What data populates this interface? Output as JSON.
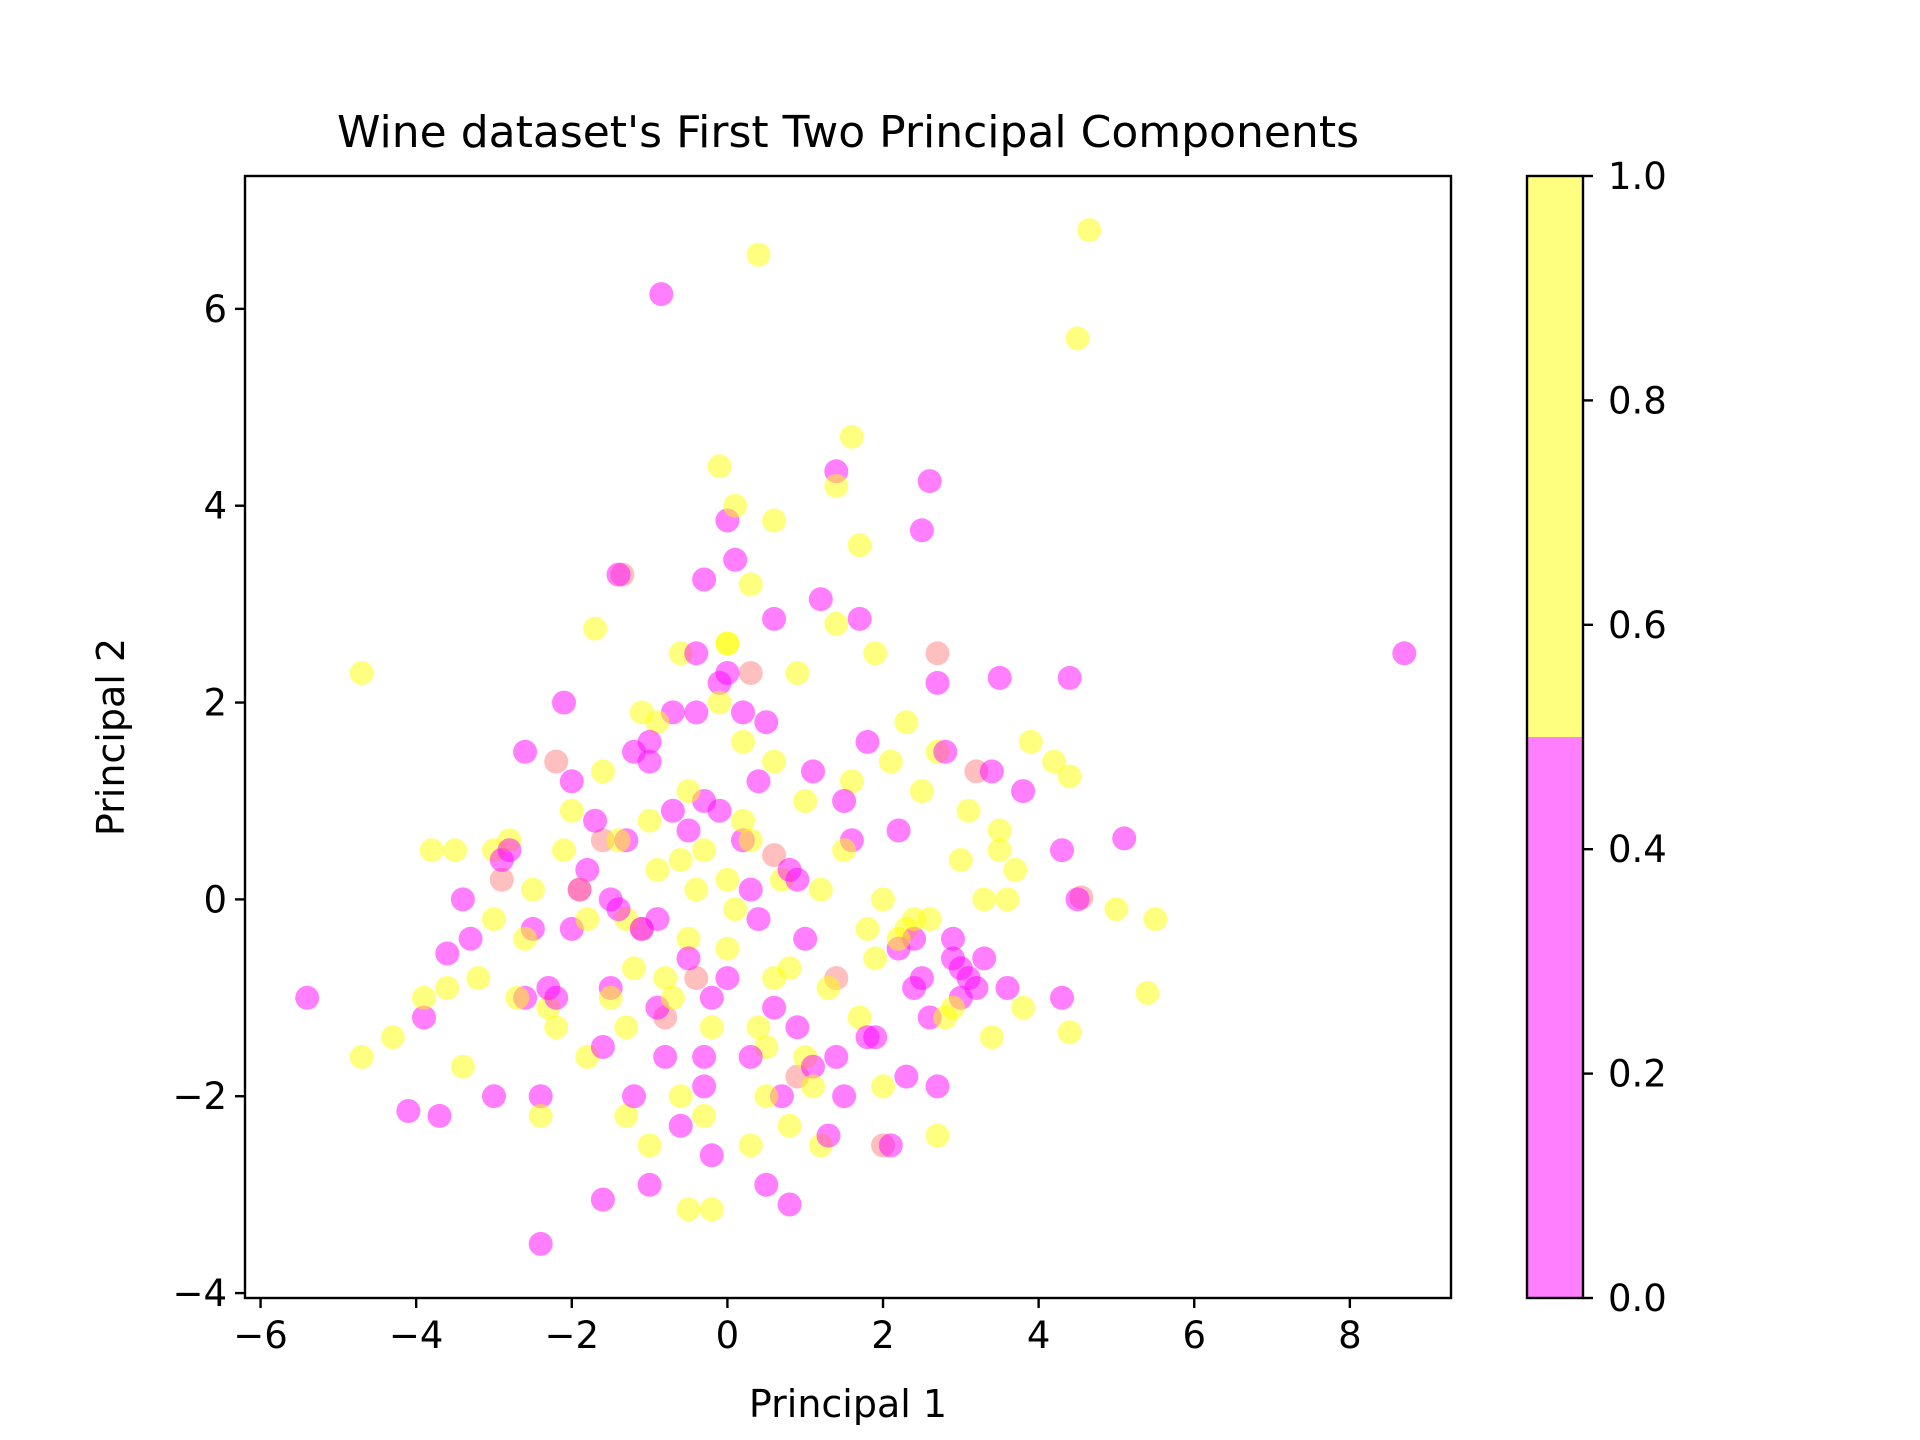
{
  "chart_data": {
    "type": "scatter",
    "title": "Wine dataset's First Two Principal Components",
    "xlabel": "Principal 1",
    "ylabel": "Principal 2",
    "xlim": [
      -6.2,
      9.3
    ],
    "ylim": [
      -4.05,
      7.35
    ],
    "xticks": [
      -6,
      -4,
      -2,
      0,
      2,
      4,
      6,
      8
    ],
    "xtick_labels": [
      "−6",
      "−4",
      "−2",
      "0",
      "2",
      "4",
      "6",
      "8"
    ],
    "yticks": [
      -4,
      -2,
      0,
      2,
      4,
      6
    ],
    "ytick_labels": [
      "−4",
      "−2",
      "0",
      "2",
      "4",
      "6"
    ],
    "grid": false,
    "colorbar": {
      "range": [
        0.0,
        1.0
      ],
      "ticks": [
        0.0,
        0.2,
        0.4,
        0.6,
        0.8,
        1.0
      ],
      "tick_labels": [
        "0.0",
        "0.2",
        "0.4",
        "0.6",
        "0.8",
        "1.0"
      ],
      "colors": {
        "low": "#ff00ff",
        "high": "#ffff00"
      },
      "split": 0.5
    },
    "marker_alpha": 0.5,
    "series": [
      {
        "class": 0,
        "color": "#ff00ff",
        "x": [
          -0.85,
          2.6,
          2.5,
          1.4,
          0.0,
          -0.3,
          0.1,
          -1.4,
          1.2,
          1.7,
          0.6,
          2.7,
          3.5,
          4.4,
          5.1,
          8.7,
          -0.4,
          -2.1,
          -2.6,
          -3.6,
          -3.9,
          -5.4,
          -4.1,
          -3.0,
          -2.4,
          -1.6,
          -1.0,
          -2.4,
          0.5,
          0.8,
          1.5,
          2.3,
          2.5,
          3.0,
          3.3,
          3.6,
          3.8,
          4.3,
          4.5,
          4.3,
          2.8,
          2.2,
          1.8,
          -0.1,
          -0.7,
          -2.0,
          -1.2,
          -0.3,
          1.1,
          1.6,
          2.9,
          0.2,
          -0.5,
          -1.8,
          -2.9,
          -1.5,
          0.4,
          1.0,
          2.2,
          2.9,
          3.2,
          0.0,
          -0.2,
          -0.9,
          -1.5,
          -2.2,
          -3.3,
          -2.5,
          -1.6,
          -0.8,
          -0.3,
          0.3,
          0.9,
          1.9,
          2.6,
          -1.2,
          -0.6,
          0.7,
          1.3,
          2.1,
          -0.9,
          0.3,
          0.8,
          -0.1,
          -1.3,
          -2.8,
          -3.4,
          -1.0,
          0.2,
          1.5,
          2.4,
          3.4,
          3.0,
          -1.9,
          -2.6,
          -0.5,
          -0.3,
          0.6,
          1.1,
          -1.4,
          -0.7,
          0.4,
          0.0,
          -2.0,
          -3.7,
          -1.1,
          1.4,
          2.7,
          -0.2,
          0.9,
          -1.7,
          0.5,
          -0.4,
          -2.3,
          -1.0,
          1.8,
          2.4,
          3.1
        ],
        "y": [
          6.15,
          4.25,
          3.75,
          4.35,
          3.85,
          3.25,
          3.45,
          3.3,
          3.05,
          2.85,
          2.85,
          2.2,
          2.25,
          2.25,
          0.62,
          2.5,
          2.5,
          2.0,
          1.5,
          -0.55,
          -1.2,
          -1.0,
          -2.15,
          -2.0,
          -2.0,
          -3.05,
          -2.9,
          -3.5,
          -2.9,
          -3.1,
          -2.0,
          -1.8,
          -0.8,
          -1.0,
          -0.6,
          -0.9,
          1.1,
          0.5,
          0.0,
          -1.0,
          1.5,
          0.7,
          1.6,
          2.2,
          1.9,
          1.2,
          1.5,
          1.0,
          1.3,
          0.6,
          -0.4,
          0.6,
          0.7,
          0.3,
          0.4,
          0.0,
          -0.2,
          -0.4,
          -0.5,
          -0.6,
          -0.9,
          -0.8,
          -1.0,
          -1.1,
          -0.9,
          -1.0,
          -0.4,
          -0.3,
          -1.5,
          -1.6,
          -1.9,
          -1.6,
          -1.3,
          -1.4,
          -1.2,
          -2.0,
          -2.3,
          -2.0,
          -2.4,
          -2.5,
          -0.2,
          0.1,
          0.3,
          0.9,
          0.6,
          0.5,
          0.0,
          1.6,
          1.9,
          1.0,
          -0.4,
          1.3,
          -0.7,
          0.1,
          -1.0,
          -0.6,
          -1.6,
          -1.1,
          -1.7,
          -0.1,
          0.9,
          1.2,
          2.3,
          -0.3,
          -2.2,
          -0.3,
          -1.6,
          -1.9,
          -2.6,
          0.2,
          0.8,
          1.8,
          1.9,
          -0.9,
          1.4,
          -1.4,
          -0.9,
          -0.8
        ]
      },
      {
        "class": 1,
        "color": "#ffff00",
        "x": [
          4.65,
          0.4,
          4.5,
          1.6,
          1.4,
          1.7,
          -0.1,
          0.1,
          0.6,
          0.3,
          0.0,
          -1.7,
          -4.7,
          -0.6,
          1.4,
          1.9,
          2.3,
          2.7,
          3.9,
          4.2,
          4.4,
          3.5,
          3.7,
          5.0,
          5.5,
          5.4,
          4.4,
          3.8,
          -3.8,
          -3.5,
          -3.0,
          -2.5,
          -3.9,
          -4.3,
          -4.7,
          -3.4,
          -2.4,
          -1.3,
          -0.5,
          -0.2,
          0.3,
          0.8,
          1.2,
          2.0,
          2.7,
          2.9,
          3.3,
          0.5,
          -0.6,
          -1.0,
          -1.8,
          -2.3,
          -1.2,
          0.0,
          0.6,
          1.3,
          1.9,
          2.3,
          -0.9,
          -0.3,
          0.2,
          1.0,
          1.6,
          -2.1,
          -2.8,
          -1.6,
          -0.9,
          -0.1,
          0.9,
          2.1,
          2.5,
          3.1,
          3.5,
          -0.4,
          0.7,
          1.5,
          -1.3,
          -0.5,
          0.1,
          -1.9,
          -2.6,
          -3.2,
          2.0,
          2.6,
          -0.7,
          -0.2,
          0.4,
          1.0,
          0.2,
          -1.1,
          -0.6,
          1.8,
          -3.6,
          -2.2,
          -1.5,
          -0.8,
          0.8,
          2.2,
          3.0,
          3.6,
          0.5,
          -0.3,
          -2.0,
          -1.4,
          -1.0,
          0.0,
          1.2,
          2.4,
          -3.0,
          -2.7,
          0.3,
          0.6,
          -0.5,
          1.7,
          1.1,
          -1.8,
          -1.3,
          0.0,
          2.8,
          3.4
        ],
        "y": [
          6.8,
          6.55,
          5.7,
          4.7,
          4.2,
          3.6,
          4.4,
          4.0,
          3.85,
          3.2,
          2.6,
          2.75,
          2.3,
          2.5,
          2.8,
          2.5,
          1.8,
          1.5,
          1.6,
          1.4,
          1.25,
          0.7,
          0.3,
          -0.1,
          -0.2,
          -0.95,
          -1.35,
          -1.1,
          0.5,
          0.5,
          0.5,
          0.1,
          -1.0,
          -1.4,
          -1.6,
          -1.7,
          -2.2,
          -2.2,
          -3.15,
          -3.15,
          -2.5,
          -2.3,
          -2.5,
          -1.9,
          -2.4,
          -1.1,
          0.0,
          -1.5,
          -2.0,
          -2.5,
          -1.6,
          -1.1,
          -0.7,
          -0.5,
          -0.8,
          -0.9,
          -0.6,
          -0.3,
          0.3,
          0.5,
          0.8,
          1.0,
          1.2,
          0.5,
          0.6,
          1.3,
          1.8,
          2.0,
          2.3,
          1.4,
          1.1,
          0.9,
          0.5,
          0.1,
          0.2,
          0.5,
          -0.2,
          -0.4,
          -0.1,
          0.1,
          -0.4,
          -0.8,
          0.0,
          -0.2,
          -1.0,
          -1.3,
          -1.3,
          -1.6,
          1.6,
          1.9,
          0.4,
          -0.3,
          -0.9,
          -1.3,
          -1.0,
          -0.8,
          -0.7,
          -0.4,
          0.4,
          0.0,
          -2.0,
          -2.2,
          0.9,
          0.6,
          0.8,
          0.2,
          0.1,
          -0.2,
          -0.2,
          -1.0,
          0.6,
          1.4,
          1.1,
          -1.2,
          -1.9,
          -0.2,
          -1.3,
          2.6,
          -1.2,
          -1.4
        ]
      },
      {
        "class": "mixed",
        "color": "#ff8080",
        "x": [
          -1.35,
          2.7,
          4.55,
          0.6,
          -0.4,
          -1.1,
          0.3,
          -2.2,
          -2.9,
          -0.8,
          2.0,
          3.2,
          -1.6,
          0.9,
          1.4
        ],
        "y": [
          3.3,
          2.5,
          0.02,
          0.45,
          -0.8,
          -0.3,
          2.3,
          1.4,
          0.2,
          -1.2,
          -2.5,
          1.3,
          0.6,
          -1.8,
          -0.8
        ]
      }
    ]
  }
}
